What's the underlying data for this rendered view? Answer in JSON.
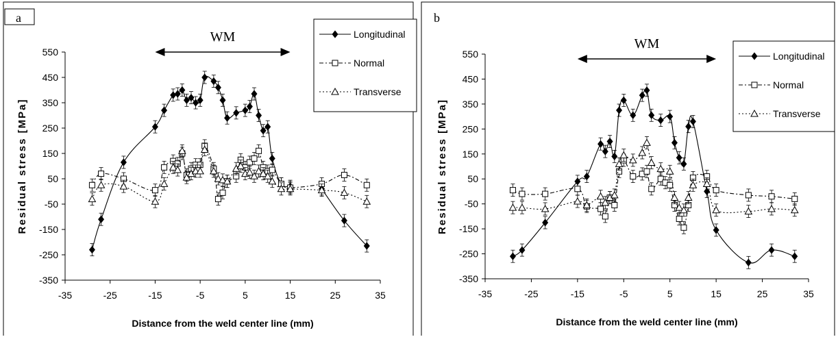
{
  "chart_data": [
    {
      "type": "line",
      "panel_label": "a",
      "annotation": "WM",
      "annotation_range": [
        -15,
        15
      ],
      "xlabel": "Distance from the weld center line (mm)",
      "ylabel": "Residual stress [MPa]",
      "xlim": [
        -35,
        35
      ],
      "ylim": [
        -350,
        550
      ],
      "xticks": [
        -35,
        -25,
        -15,
        -5,
        5,
        15,
        25,
        35
      ],
      "yticks": [
        550,
        450,
        350,
        250,
        150,
        50,
        -50,
        -150,
        -250,
        -350
      ],
      "legend_position": "top-right",
      "grid": false,
      "series": [
        {
          "name": "Longitudinal",
          "marker": "filled-diamond",
          "line": "solid",
          "x": [
            -29,
            -27,
            -22,
            -15,
            -13,
            -11,
            -10,
            -9,
            -8,
            -7,
            -6,
            -5,
            -4,
            -2,
            -1,
            0,
            1,
            3,
            5,
            6,
            7,
            8,
            9,
            10,
            11,
            13,
            15
          ],
          "y": [
            -230,
            -110,
            115,
            255,
            320,
            380,
            385,
            400,
            360,
            370,
            350,
            360,
            450,
            435,
            410,
            360,
            290,
            310,
            320,
            335,
            385,
            300,
            240,
            255,
            130,
            30,
            20
          ],
          "x2": [
            22,
            27,
            32
          ],
          "y2": [
            10,
            -115,
            -215
          ]
        },
        {
          "name": "Normal",
          "marker": "open-square",
          "line": "dash-dot",
          "x": [
            -29,
            -27,
            -22,
            -15,
            -13,
            -11,
            -10,
            -9,
            -8,
            -7,
            -6,
            -5,
            -4,
            -2,
            -1,
            0,
            1,
            3,
            4,
            5,
            6,
            7,
            8,
            9,
            10,
            11,
            13,
            15,
            22,
            27,
            32
          ],
          "y": [
            25,
            70,
            50,
            5,
            95,
            120,
            110,
            150,
            65,
            90,
            105,
            105,
            180,
            90,
            -30,
            -5,
            40,
            60,
            125,
            95,
            115,
            130,
            160,
            95,
            80,
            85,
            30,
            15,
            30,
            65,
            25
          ]
        },
        {
          "name": "Transverse",
          "marker": "open-triangle",
          "line": "dotted",
          "x": [
            -29,
            -27,
            -22,
            -15,
            -13,
            -11,
            -10,
            -9,
            -8,
            -7,
            -6,
            -5,
            -4,
            -2,
            -1,
            0,
            1,
            3,
            4,
            5,
            6,
            7,
            8,
            9,
            10,
            11,
            13,
            15,
            22,
            27,
            32
          ],
          "y": [
            -30,
            25,
            20,
            -40,
            30,
            95,
            85,
            160,
            55,
            70,
            80,
            80,
            165,
            80,
            50,
            45,
            40,
            90,
            100,
            70,
            75,
            60,
            80,
            70,
            60,
            40,
            10,
            10,
            5,
            -5,
            -40
          ]
        }
      ]
    },
    {
      "type": "line",
      "panel_label": "b",
      "annotation": "WM",
      "annotation_range": [
        -15,
        15
      ],
      "xlabel": "Distance from the weld center line (mm)",
      "ylabel": "Residual stress [MPa]",
      "xlim": [
        -35,
        35
      ],
      "ylim": [
        -350,
        550
      ],
      "xticks": [
        -35,
        -25,
        -15,
        -5,
        5,
        15,
        25,
        35
      ],
      "yticks": [
        550,
        450,
        350,
        250,
        150,
        50,
        -50,
        -150,
        -250,
        -350
      ],
      "legend_position": "top-right",
      "grid": false,
      "series": [
        {
          "name": "Longitudinal",
          "marker": "filled-diamond",
          "line": "solid",
          "x": [
            -29,
            -27,
            -22,
            -15,
            -13,
            -10,
            -9,
            -8,
            -7,
            -6,
            -5,
            -3,
            -1,
            0,
            1,
            3,
            5,
            6,
            7,
            8,
            9,
            10,
            13,
            15,
            22,
            27,
            32
          ],
          "y": [
            -260,
            -235,
            -125,
            40,
            60,
            190,
            160,
            200,
            140,
            325,
            365,
            305,
            385,
            405,
            305,
            285,
            300,
            195,
            135,
            110,
            260,
            280,
            0,
            -155,
            -285,
            -235,
            -260
          ]
        },
        {
          "name": "Normal",
          "marker": "open-square",
          "line": "dash-dot",
          "x": [
            -29,
            -27,
            -22,
            -15,
            -13,
            -10,
            -9,
            -8,
            -7,
            -6,
            -5,
            -3,
            -1,
            0,
            1,
            3,
            4,
            5,
            6,
            7,
            8,
            9,
            10,
            13,
            15,
            22,
            27,
            32
          ],
          "y": [
            5,
            -10,
            -10,
            10,
            -60,
            -70,
            -100,
            -25,
            -55,
            80,
            125,
            60,
            70,
            80,
            10,
            50,
            35,
            25,
            -55,
            -110,
            -145,
            -55,
            55,
            60,
            5,
            -15,
            -20,
            -30
          ]
        },
        {
          "name": "Transverse",
          "marker": "open-triangle",
          "line": "dotted",
          "x": [
            -29,
            -27,
            -22,
            -15,
            -13,
            -10,
            -9,
            -8,
            -7,
            -6,
            -5,
            -3,
            -1,
            0,
            1,
            3,
            5,
            6,
            7,
            8,
            9,
            10,
            13,
            15,
            22,
            27,
            32
          ],
          "y": [
            -65,
            -65,
            -70,
            -40,
            -55,
            -20,
            -45,
            -25,
            -15,
            110,
            145,
            125,
            155,
            195,
            115,
            90,
            80,
            -25,
            -65,
            -75,
            -25,
            25,
            30,
            -75,
            -80,
            -70,
            -75
          ]
        }
      ]
    }
  ]
}
